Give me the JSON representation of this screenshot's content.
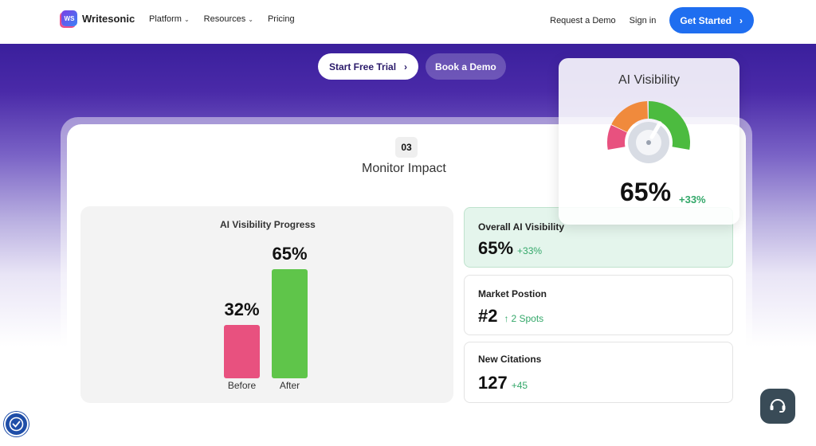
{
  "nav": {
    "brand": "Writesonic",
    "brand_mark": "WS",
    "links": [
      {
        "label": "Platform",
        "has_dropdown": true
      },
      {
        "label": "Resources",
        "has_dropdown": true
      },
      {
        "label": "Pricing",
        "has_dropdown": false
      }
    ],
    "request_demo": "Request a Demo",
    "sign_in": "Sign in",
    "get_started": "Get Started"
  },
  "cta": {
    "trial": "Start Free Trial",
    "demo": "Book a Demo"
  },
  "step": {
    "number": "03",
    "title": "Monitor Impact"
  },
  "progress": {
    "title": "AI Visibility Progress",
    "chart_data": {
      "type": "bar",
      "categories": [
        "Before",
        "After"
      ],
      "values": [
        32,
        65
      ],
      "labels": [
        "32%",
        "65%"
      ],
      "colors": [
        "#e8517f",
        "#5fc54a"
      ]
    }
  },
  "metrics": [
    {
      "label": "Overall AI Visibility",
      "value": "65%",
      "delta": "+33%",
      "arrow": ""
    },
    {
      "label": "Market Postion",
      "value": "#2",
      "delta": "2 Spots",
      "arrow": "↑"
    },
    {
      "label": "New Citations",
      "value": "127",
      "delta": "+45",
      "arrow": ""
    }
  ],
  "gauge": {
    "title": "AI Visibility",
    "value": "65%",
    "delta": "+33%",
    "level": 0.65
  },
  "colors": {
    "accent": "#1f6ef0",
    "positive": "#34a86a",
    "hero": "#3a1f9c"
  },
  "icons": {
    "accessibility": "accessibility-icon",
    "chat": "chat-icon"
  }
}
